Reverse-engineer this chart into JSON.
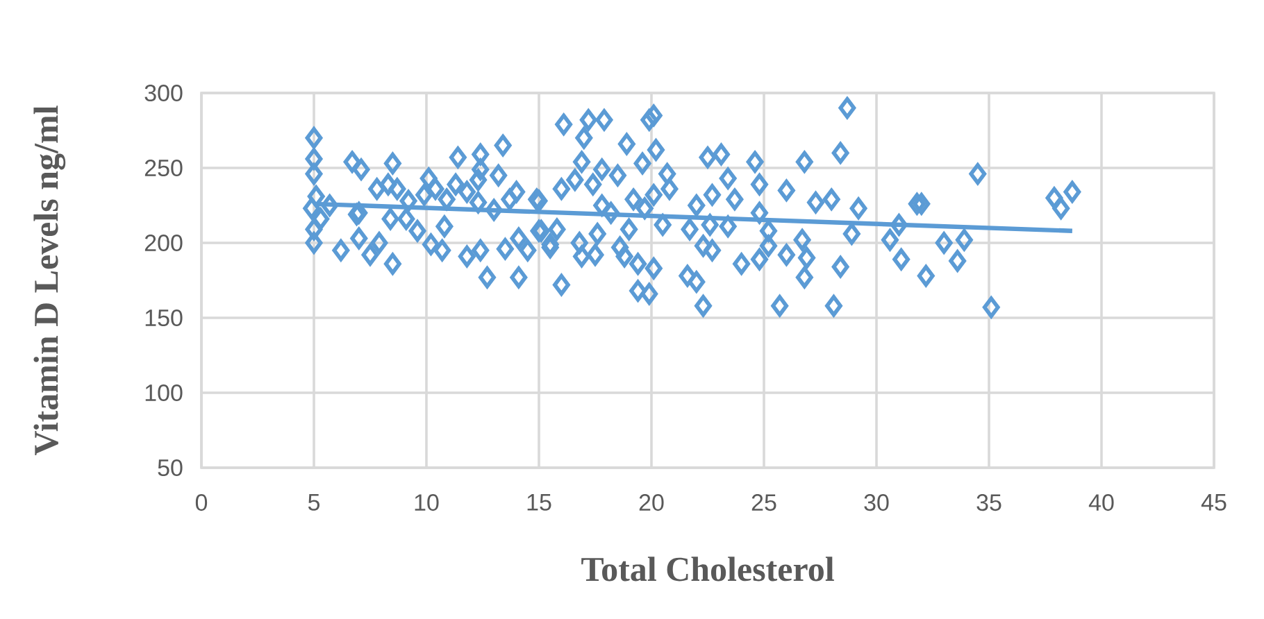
{
  "chart_data": {
    "type": "scatter",
    "xlabel": "Total Cholesterol",
    "ylabel": "Vitamin D Levels ng/ml",
    "xlim": [
      0,
      45
    ],
    "xticks": [
      0,
      5,
      10,
      15,
      20,
      25,
      30,
      35,
      40,
      45
    ],
    "ylim": [
      50,
      300
    ],
    "yticks": [
      50,
      100,
      150,
      200,
      250,
      300
    ],
    "grid": true,
    "marker": "diamond",
    "series": [
      {
        "color": "#5b9bd5",
        "x": [
          5.0,
          5.0,
          5.0,
          5.1,
          4.9,
          5.3,
          5.0,
          5.0,
          5.7,
          6.2,
          6.7,
          7.1,
          7.0,
          6.9,
          7.0,
          7.5,
          7.9,
          7.8,
          8.3,
          8.5,
          8.7,
          8.4,
          8.5,
          9.2,
          9.1,
          9.6,
          10.1,
          9.9,
          10.4,
          10.2,
          10.7,
          10.8,
          10.9,
          11.4,
          11.3,
          11.8,
          11.8,
          12.4,
          12.4,
          12.3,
          12.3,
          12.4,
          12.7,
          13.0,
          13.2,
          13.4,
          13.5,
          13.7,
          14.0,
          14.1,
          14.1,
          14.5,
          14.9,
          15.0,
          15.5,
          16.1,
          17.2,
          17.9,
          17.0,
          16.9,
          17.4,
          17.8,
          18.5,
          18.9,
          19.6,
          20.1,
          19.9,
          20.2,
          20.7,
          20.8,
          19.2,
          20.1,
          19.7,
          17.8,
          18.2,
          15.0,
          16.0,
          16.6,
          15.8,
          15.1,
          15.5,
          16.8,
          16.9,
          17.6,
          17.5,
          18.6,
          18.8,
          19.0,
          19.4,
          20.1,
          19.4,
          19.9,
          16.0,
          21.6,
          22.0,
          22.3,
          20.5,
          21.7,
          22.0,
          22.5,
          23.1,
          23.4,
          22.7,
          23.7,
          24.6,
          24.8,
          24.8,
          26.0,
          26.8,
          27.3,
          28.0,
          28.4,
          29.2,
          28.7,
          22.6,
          23.4,
          22.3,
          22.7,
          24.0,
          24.8,
          25.2,
          25.2,
          26.0,
          26.7,
          26.9,
          26.8,
          25.7,
          28.1,
          28.4,
          28.9,
          30.6,
          31.1,
          31.0,
          31.8,
          34.5,
          32.0,
          32.2,
          33.0,
          33.9,
          33.6,
          35.1,
          37.9,
          38.7,
          38.2
        ],
        "values": [
          270,
          256,
          246,
          231,
          223,
          216,
          209,
          200,
          225,
          195,
          254,
          249,
          220,
          219,
          203,
          192,
          200,
          236,
          239,
          253,
          236,
          216,
          186,
          228,
          216,
          208,
          243,
          232,
          236,
          199,
          195,
          211,
          229,
          257,
          239,
          234,
          191,
          259,
          249,
          242,
          227,
          195,
          177,
          222,
          245,
          265,
          196,
          229,
          234,
          177,
          203,
          195,
          229,
          208,
          197,
          279,
          282,
          282,
          270,
          254,
          239,
          249,
          245,
          266,
          253,
          285,
          282,
          262,
          246,
          236,
          229,
          232,
          223,
          225,
          220,
          228,
          236,
          242,
          209,
          208,
          199,
          200,
          191,
          206,
          192,
          197,
          191,
          209,
          186,
          183,
          168,
          166,
          172,
          178,
          174,
          158,
          212,
          209,
          225,
          257,
          259,
          243,
          232,
          229,
          254,
          239,
          220,
          235,
          254,
          227,
          229,
          260,
          223,
          290,
          212,
          211,
          198,
          195,
          186,
          189,
          198,
          208,
          192,
          202,
          190,
          177,
          158,
          158,
          184,
          206,
          202,
          189,
          212,
          226,
          246,
          226,
          178,
          200,
          202,
          188,
          157,
          230,
          234,
          223
        ]
      },
      {
        "type": "line",
        "color": "#5b9bd5",
        "marker": "none",
        "x": [
          5,
          38.7
        ],
        "values": [
          226,
          208
        ]
      }
    ]
  }
}
